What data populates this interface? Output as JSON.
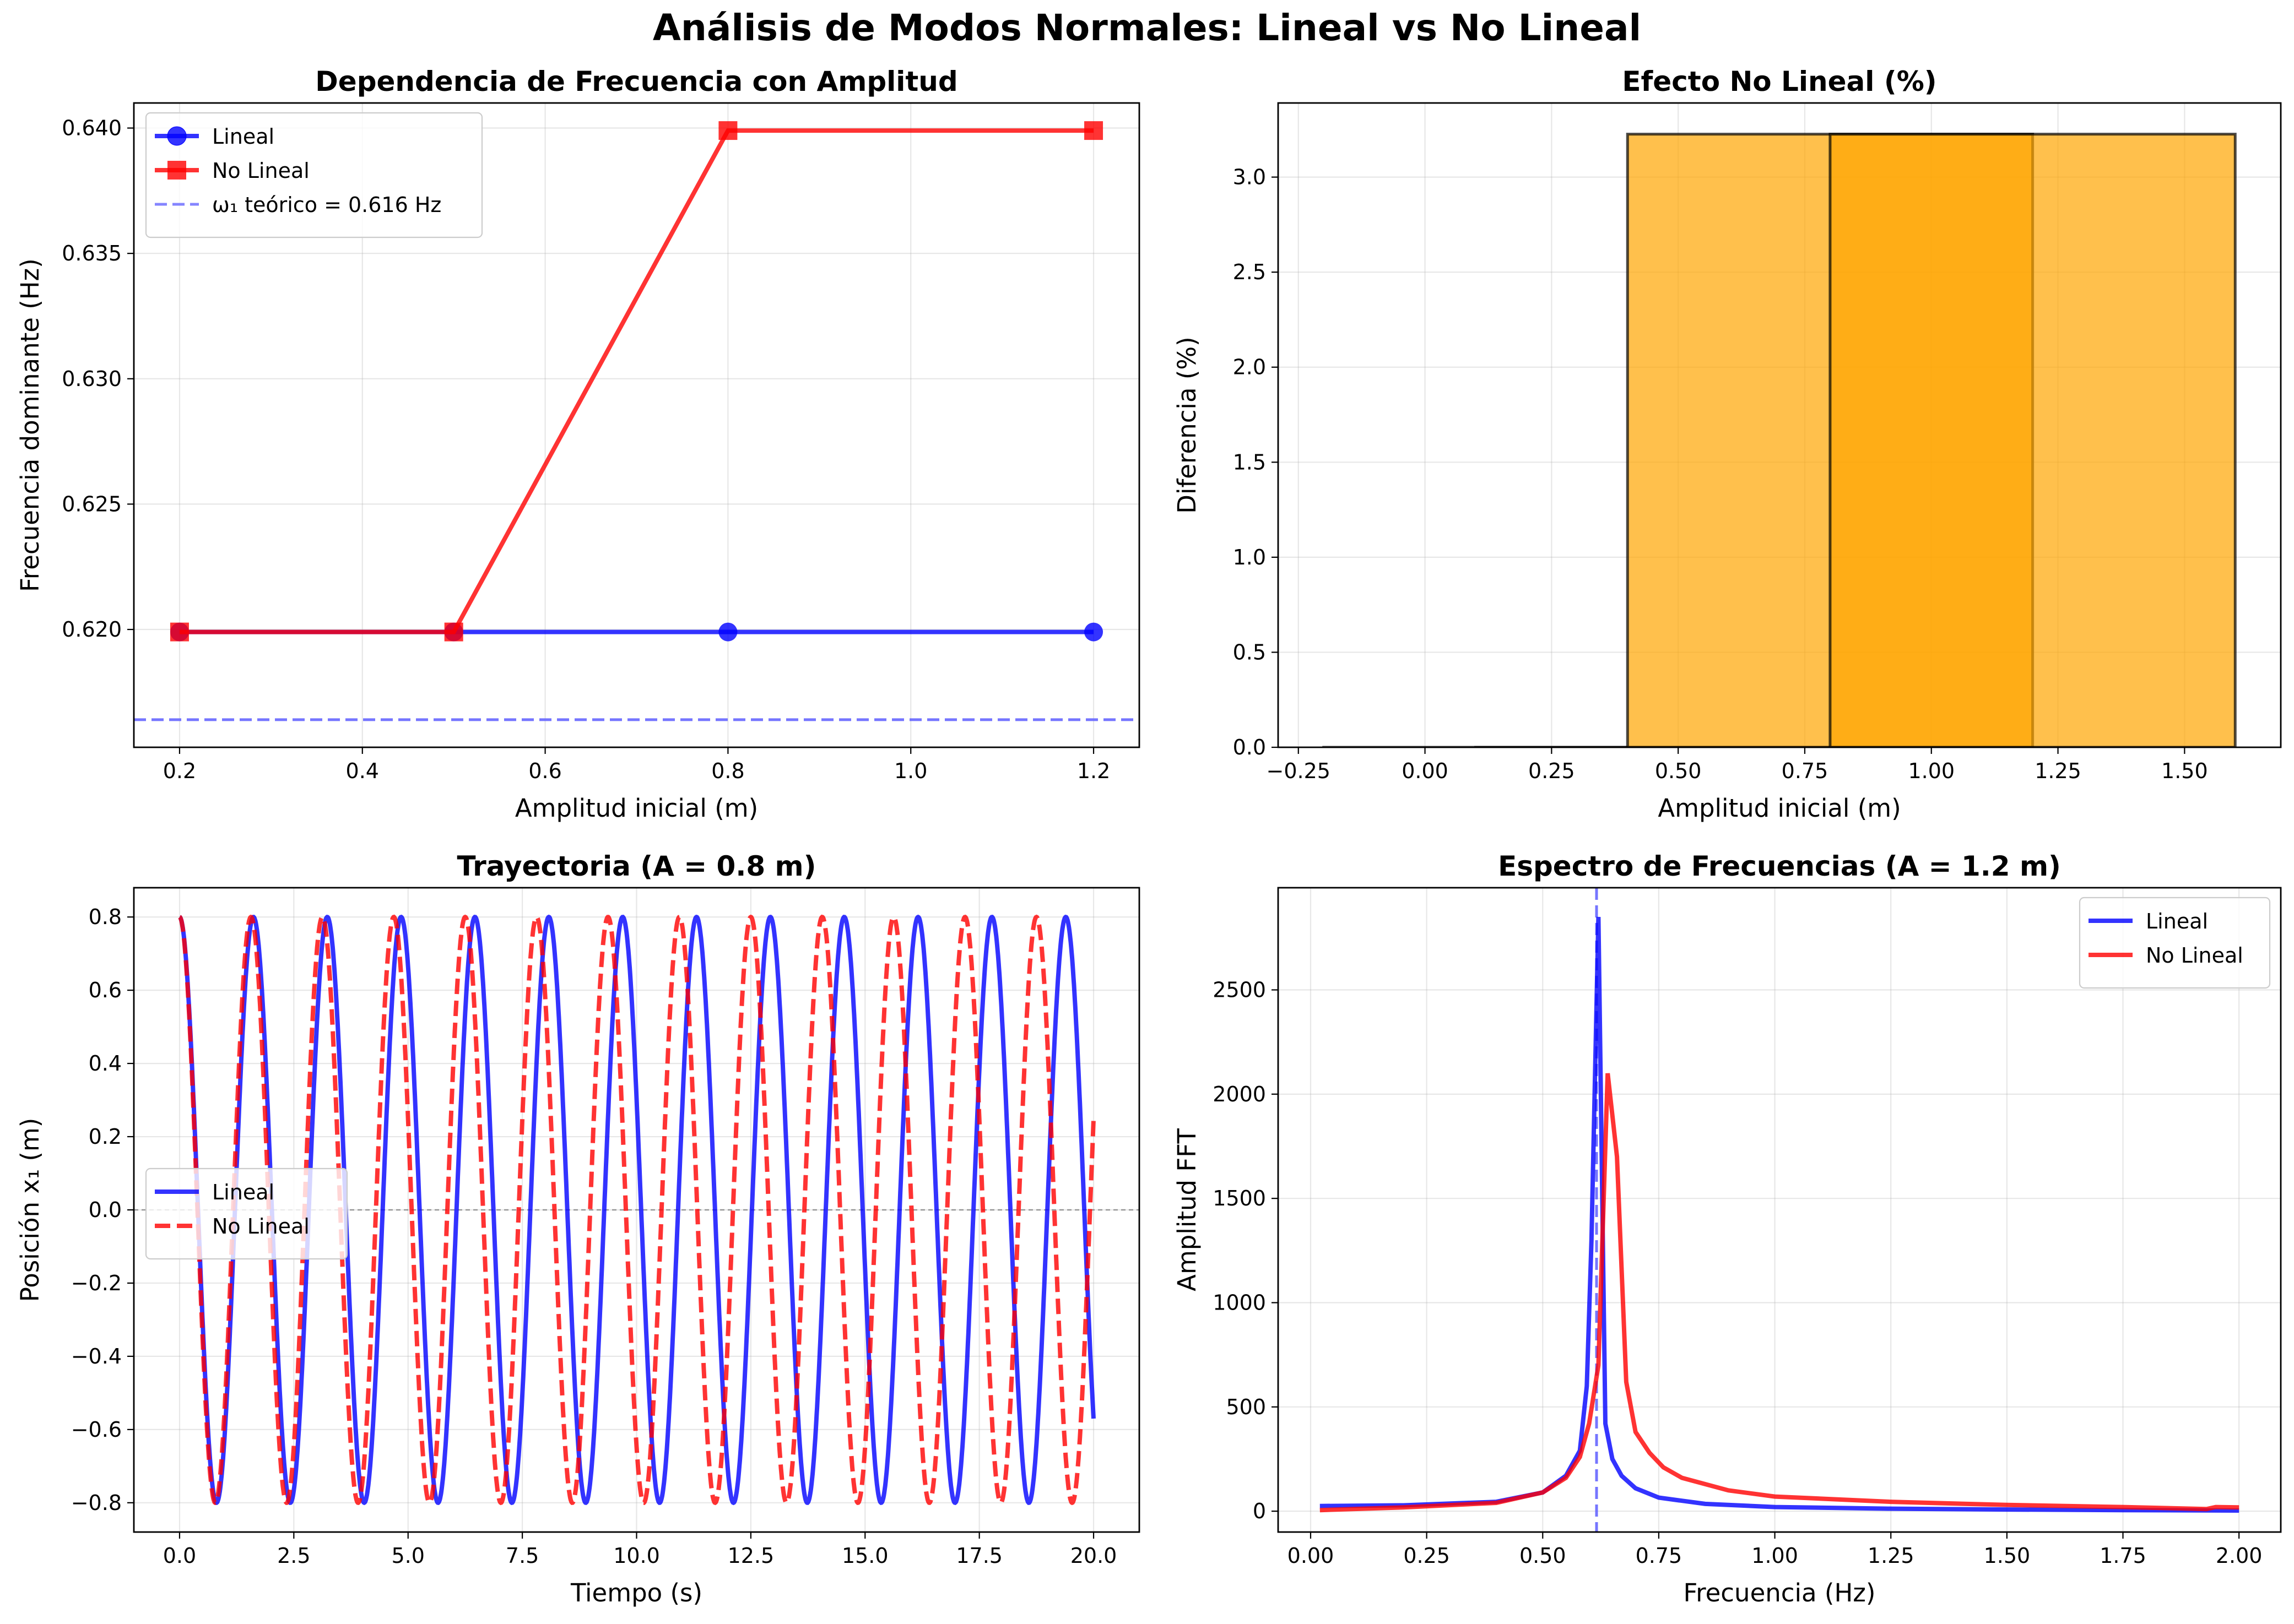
{
  "figure": {
    "suptitle": "Análisis de Modos Normales: Lineal vs No Lineal"
  },
  "colors": {
    "lineal": "#0000ff",
    "no_lineal": "#ff0000",
    "theory": "#6666ff",
    "bar_fill": "#ffa500",
    "bar_edge": "#000000"
  },
  "chart_data": [
    {
      "id": "freq",
      "type": "line",
      "title": "Dependencia de Frecuencia con Amplitud",
      "xlabel": "Amplitud inicial (m)",
      "ylabel": "Frecuencia dominante (Hz)",
      "xlim": [
        0.15,
        1.25
      ],
      "ylim": [
        0.6153,
        0.641
      ],
      "xticks": [
        0.2,
        0.4,
        0.6,
        0.8,
        1.0,
        1.2
      ],
      "yticks": [
        0.62,
        0.625,
        0.63,
        0.635,
        0.64
      ],
      "x": [
        0.2,
        0.5,
        0.8,
        1.2
      ],
      "series": [
        {
          "name": "Lineal",
          "values": [
            0.6199,
            0.6199,
            0.6199,
            0.6199
          ]
        },
        {
          "name": "No Lineal",
          "values": [
            0.6199,
            0.6199,
            0.6399,
            0.6399
          ]
        }
      ],
      "hline": {
        "name": "ω₁ teórico = 0.616 Hz",
        "y": 0.6164
      },
      "legend": "upper-left",
      "grid": true
    },
    {
      "id": "effect",
      "type": "bar",
      "title": "Efecto No Lineal (%)",
      "xlabel": "Amplitud inicial (m)",
      "ylabel": "Diferencia (%)",
      "xlim": [
        -0.29,
        1.69
      ],
      "ylim": [
        0,
        3.39
      ],
      "xticks": [
        -0.25,
        0.0,
        0.25,
        0.5,
        0.75,
        1.0,
        1.25,
        1.5
      ],
      "yticks": [
        0.0,
        0.5,
        1.0,
        1.5,
        2.0,
        2.5,
        3.0
      ],
      "bar_width": 0.8,
      "x": [
        0.2,
        0.5,
        0.8,
        1.2
      ],
      "values": [
        0.0,
        0.0,
        3.226,
        3.226
      ],
      "grid": true
    },
    {
      "id": "traj",
      "type": "line",
      "title": "Trayectoria (A = 0.8 m)",
      "xlabel": "Tiempo (s)",
      "ylabel": "Posición x₁ (m)",
      "xlim": [
        -1.0,
        21.0
      ],
      "ylim": [
        -0.88,
        0.88
      ],
      "xticks": [
        0.0,
        2.5,
        5.0,
        7.5,
        10.0,
        12.5,
        15.0,
        17.5,
        20.0
      ],
      "yticks": [
        -0.8,
        -0.6,
        -0.4,
        -0.2,
        0.0,
        0.2,
        0.4,
        0.6,
        0.8
      ],
      "series": [
        {
          "name": "Lineal",
          "amplitude": 0.8,
          "period": 1.616,
          "t_end": 20.0,
          "style": "solid"
        },
        {
          "name": "No Lineal",
          "amplitude": 0.8,
          "period": 1.5625,
          "t_end": 20.0,
          "style": "dashed"
        }
      ],
      "zero_line": true,
      "legend": "center-left",
      "grid": true
    },
    {
      "id": "spec",
      "type": "line",
      "title": "Espectro de Frecuencias (A = 1.2 m)",
      "xlabel": "Frecuencia (Hz)",
      "ylabel": "Amplitud FFT",
      "xlim": [
        -0.07,
        2.09
      ],
      "ylim": [
        -100,
        2990
      ],
      "xticks": [
        0.0,
        0.25,
        0.5,
        0.75,
        1.0,
        1.25,
        1.5,
        1.75,
        2.0
      ],
      "yticks": [
        0,
        500,
        1000,
        1500,
        2000,
        2500
      ],
      "series": [
        {
          "name": "Lineal",
          "x": [
            0.02,
            0.2,
            0.4,
            0.5,
            0.55,
            0.58,
            0.595,
            0.605,
            0.62,
            0.635,
            0.65,
            0.67,
            0.7,
            0.75,
            0.85,
            1.0,
            1.25,
            1.5,
            1.75,
            2.0
          ],
          "values": [
            25,
            28,
            45,
            90,
            170,
            290,
            600,
            1300,
            2850,
            420,
            250,
            170,
            110,
            65,
            35,
            20,
            12,
            8,
            5,
            3
          ]
        },
        {
          "name": "No Lineal",
          "x": [
            0.02,
            0.2,
            0.4,
            0.5,
            0.55,
            0.58,
            0.6,
            0.62,
            0.64,
            0.66,
            0.68,
            0.7,
            0.73,
            0.76,
            0.8,
            0.9,
            1.0,
            1.25,
            1.5,
            1.75,
            1.93,
            1.95,
            2.0
          ],
          "values": [
            5,
            18,
            40,
            90,
            160,
            260,
            420,
            700,
            2100,
            1700,
            620,
            380,
            280,
            210,
            160,
            100,
            70,
            45,
            30,
            20,
            10,
            20,
            18
          ]
        }
      ],
      "vline": {
        "x": 0.616
      },
      "legend": "upper-right",
      "grid": true
    }
  ]
}
